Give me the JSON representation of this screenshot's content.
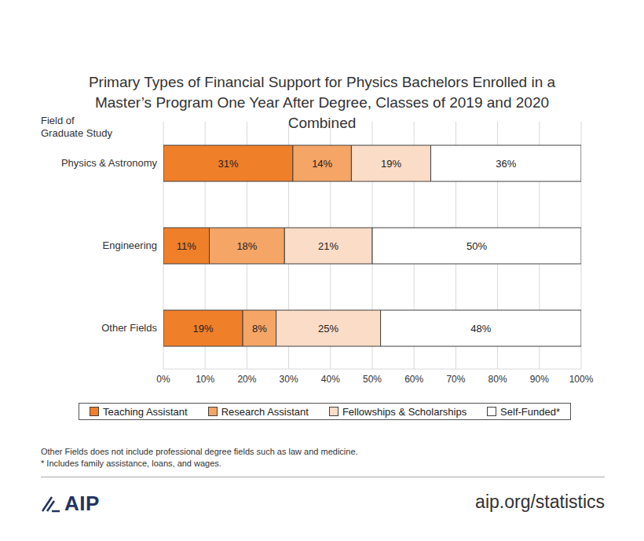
{
  "chart_data": {
    "type": "bar",
    "orientation": "horizontal",
    "stacked": true,
    "title": "Primary Types of Financial Support for Physics Bachelors Enrolled in a Master’s Program One Year After Degree, Classes of 2019 and 2020 Combined",
    "ylabel": "Field of Graduate Study",
    "categories": [
      "Physics & Astronomy",
      "Engineering",
      "Other Fields"
    ],
    "series": [
      {
        "name": "Teaching Assistant",
        "color": "#f07f2a",
        "values": [
          31,
          11,
          19
        ],
        "value_labels": [
          "31%",
          "11%",
          "19%"
        ]
      },
      {
        "name": "Research Assistant",
        "color": "#f5a566",
        "values": [
          14,
          18,
          8
        ],
        "value_labels": [
          "14%",
          "18%",
          "8%"
        ]
      },
      {
        "name": "Fellowships & Scholarships",
        "color": "#fbdcc6",
        "values": [
          19,
          21,
          25
        ],
        "value_labels": [
          "19%",
          "21%",
          "25%"
        ]
      },
      {
        "name": "Self-Funded*",
        "color": "#ffffff",
        "values": [
          36,
          50,
          48
        ],
        "value_labels": [
          "36%",
          "50%",
          "48%"
        ]
      }
    ],
    "xlim": [
      0,
      100
    ],
    "xticks": [
      {
        "value": 0,
        "label": "0%"
      },
      {
        "value": 10,
        "label": "10%"
      },
      {
        "value": 20,
        "label": "20%"
      },
      {
        "value": 30,
        "label": "30%"
      },
      {
        "value": 40,
        "label": "40%"
      },
      {
        "value": 50,
        "label": "50%"
      },
      {
        "value": 60,
        "label": "60%"
      },
      {
        "value": 70,
        "label": "70%"
      },
      {
        "value": 80,
        "label": "80%"
      },
      {
        "value": 90,
        "label": "90%"
      },
      {
        "value": 100,
        "label": "100%"
      }
    ],
    "grid": true,
    "data_labels": true,
    "legend": "bottom",
    "annotations": [
      "Other Fields does not include professional degree fields such as law and medicine.",
      "* Includes family assistance, loans, and wages.",
      "AIP",
      "aip.org/statistics"
    ]
  }
}
